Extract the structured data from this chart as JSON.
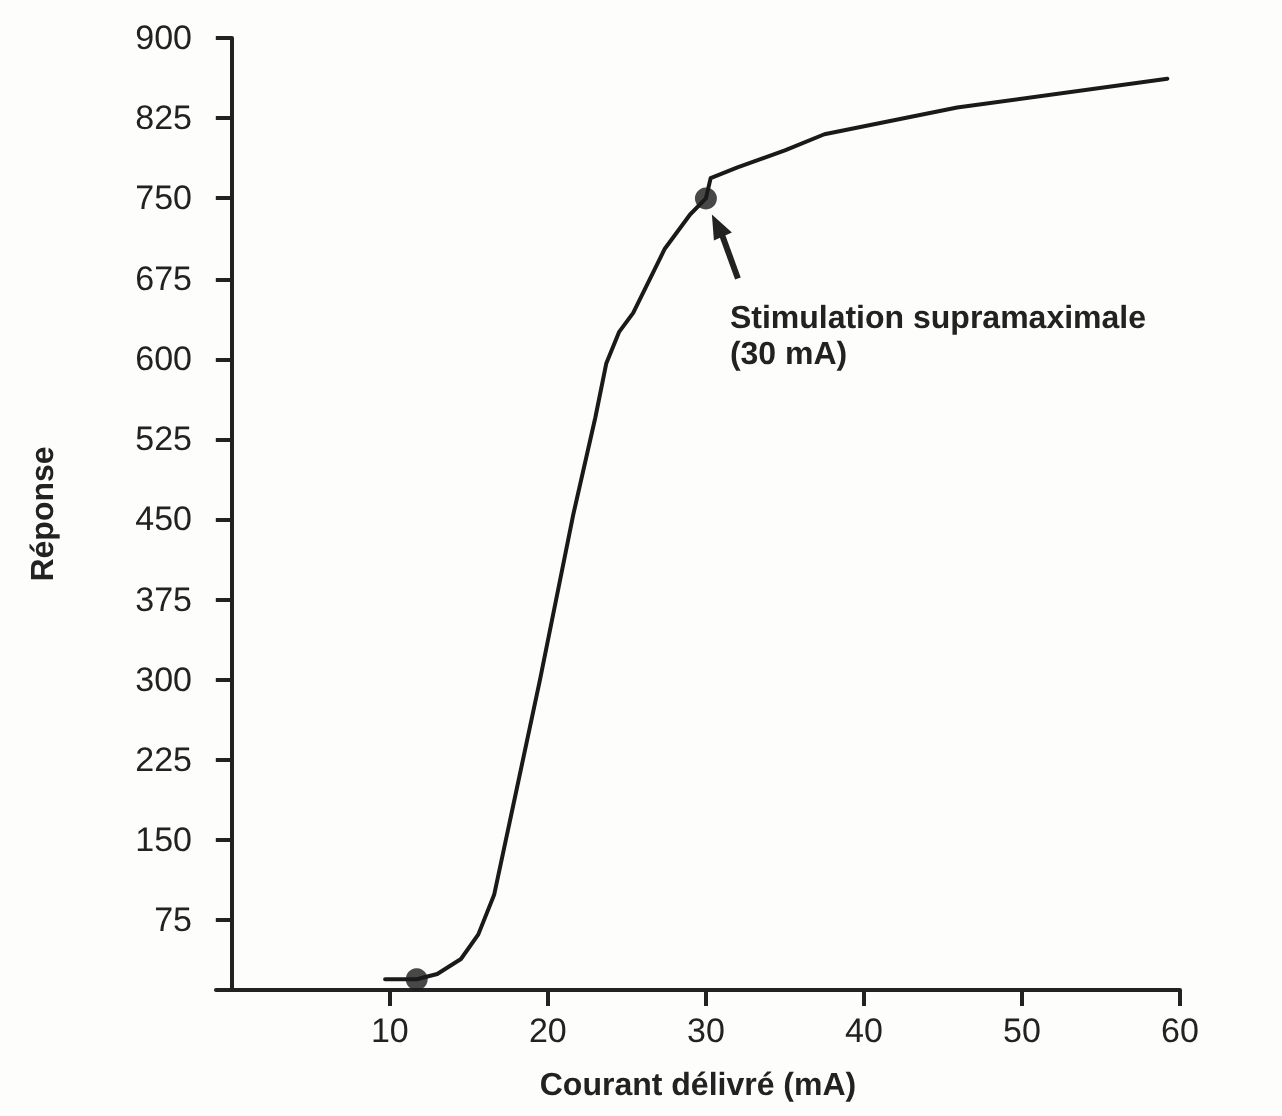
{
  "chart_data": {
    "type": "line",
    "xlabel": "Courant délivré (mA)",
    "ylabel": "Réponse",
    "annotations": [
      "Stimulation supramaximale\n(30 mA)"
    ],
    "series": [
      {
        "color": "#1a1a1a",
        "marker": "none",
        "line_style": "solid",
        "x": [
          9.7,
          11.7,
          13,
          14.5,
          15.6,
          16.6,
          17.8,
          19.5,
          21.6,
          23,
          23.7,
          24.5,
          25.4,
          27.4,
          29,
          30,
          30.3,
          32,
          35,
          37.5,
          45.9,
          59.2
        ],
        "values": [
          20,
          20,
          25,
          39,
          62,
          99,
          182,
          300,
          454,
          545,
          596,
          625,
          643,
          703,
          735,
          750,
          769,
          779,
          795,
          810,
          835,
          862
        ]
      },
      {
        "type": "scatter",
        "color": "#1a1a1a",
        "marker": "circle",
        "x": [
          11.7,
          30
        ],
        "values": [
          20,
          750
        ]
      }
    ],
    "xlim": [
      -1,
      60
    ],
    "ylim": [
      10,
      900
    ],
    "xticks": [
      10,
      20,
      30,
      40,
      50,
      60
    ],
    "yticks": [
      75,
      150,
      225,
      300,
      375,
      450,
      525,
      600,
      675,
      750,
      825,
      900
    ]
  }
}
